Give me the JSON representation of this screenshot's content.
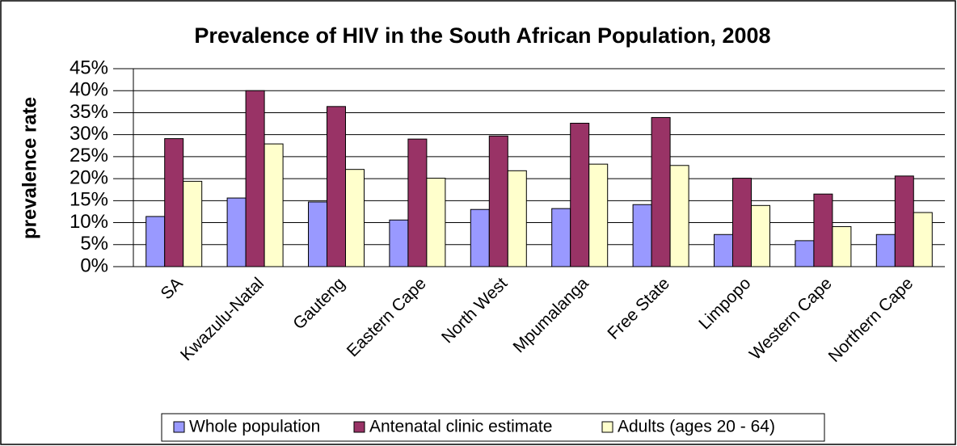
{
  "chart_data": {
    "type": "bar",
    "title": "Prevalence of HIV in the South African Population, 2008",
    "ylabel": "prevalence rate",
    "categories": [
      "SA",
      "Kwazulu-Natal",
      "Gauteng",
      "Eastern Cape",
      "North West",
      "Mpumalanga",
      "Free State",
      "Limpopo",
      "Western Cape",
      "Northern Cape"
    ],
    "series": [
      {
        "name": "Whole population",
        "color": "#9999ff",
        "values": [
          11.4,
          15.6,
          14.7,
          10.6,
          13.0,
          13.2,
          14.1,
          7.3,
          5.9,
          7.3
        ]
      },
      {
        "name": "Antenatal clinic estimate",
        "color": "#993366",
        "values": [
          29.1,
          40.0,
          36.4,
          29.0,
          29.7,
          32.6,
          33.9,
          20.1,
          16.5,
          20.6
        ]
      },
      {
        "name": "Adults (ages 20 - 64)",
        "color": "#ffffcc",
        "values": [
          19.4,
          27.9,
          22.1,
          20.1,
          21.8,
          23.3,
          23.0,
          13.9,
          9.1,
          12.3
        ]
      }
    ],
    "ylim": [
      0,
      45
    ],
    "yticks": [
      {
        "value": 0,
        "label": "0%"
      },
      {
        "value": 5,
        "label": "5%"
      },
      {
        "value": 10,
        "label": "10%"
      },
      {
        "value": 15,
        "label": "15%"
      },
      {
        "value": 20,
        "label": "20%"
      },
      {
        "value": 25,
        "label": "25%"
      },
      {
        "value": 30,
        "label": "30%"
      },
      {
        "value": 35,
        "label": "35%"
      },
      {
        "value": 40,
        "label": "40%"
      },
      {
        "value": 45,
        "label": "45%"
      }
    ],
    "grid": true,
    "legend": "bottom"
  }
}
